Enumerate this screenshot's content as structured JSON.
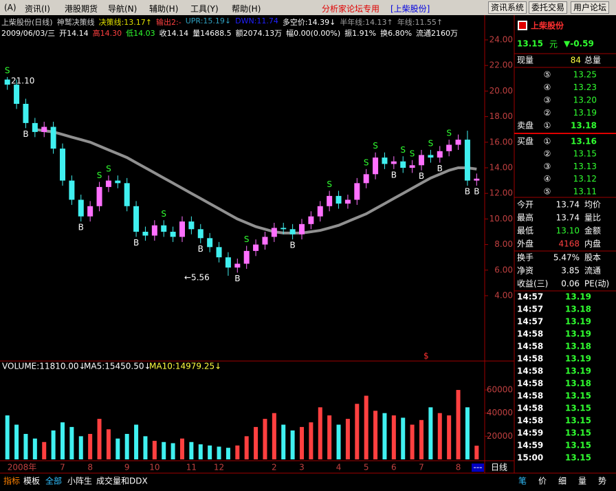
{
  "menu": {
    "items": [
      "(A)",
      "资讯(I)",
      "港股期货",
      "导航(N)",
      "辅助(H)",
      "工具(Y)",
      "帮助(H)"
    ],
    "banner": "分析家论坛专用",
    "stock": "[上柴股份]",
    "buttons": [
      "资讯系统",
      "委托交易",
      "用户论坛"
    ]
  },
  "header": {
    "line1": [
      {
        "text": "上柴股份(日线)",
        "color": "#d0d0d0"
      },
      {
        "text": "神鹫决策线",
        "color": "#d0d0d0"
      },
      {
        "text": "决策线:13.17↑",
        "color": "#e0e000"
      },
      {
        "text": "输出2:-",
        "color": "#ff4040"
      },
      {
        "text": "UPR:15.19↓",
        "color": "#30a0c0"
      },
      {
        "text": "DWN:11.74",
        "color": "#2020ff"
      },
      {
        "text": "多空价:14.39↓",
        "color": "#ffffff"
      },
      {
        "text": "半年线:14.13↑",
        "color": "#a0a0a0"
      },
      {
        "text": "年线:11.55↑",
        "color": "#a0a0a0"
      }
    ],
    "line2": [
      {
        "text": "2009/06/03/三",
        "color": "#ffffff"
      },
      {
        "text": "开14.14",
        "color": "#ffffff"
      },
      {
        "text": "高14.30",
        "color": "#ff4040"
      },
      {
        "text": "低14.03",
        "color": "#30ff30"
      },
      {
        "text": "收14.14",
        "color": "#ffffff"
      },
      {
        "text": "量14688.5",
        "color": "#ffffff"
      },
      {
        "text": "额2074.13万",
        "color": "#ffffff"
      },
      {
        "text": "幅0.00(0.00%)",
        "color": "#ffffff"
      },
      {
        "text": "振1.91%",
        "color": "#ffffff"
      },
      {
        "text": "换6.80%",
        "color": "#ffffff"
      },
      {
        "text": "流通2160万",
        "color": "#ffffff"
      }
    ]
  },
  "chart_data": [
    {
      "type": "candlestick",
      "categories": [
        "2008年",
        null,
        null,
        null,
        null,
        null,
        "7",
        null,
        null,
        "8",
        null,
        null,
        null,
        "9",
        null,
        null,
        "10",
        null,
        null,
        null,
        "11",
        null,
        null,
        "12",
        null,
        null,
        null,
        null,
        null,
        "2",
        null,
        null,
        "3",
        null,
        null,
        null,
        "4",
        null,
        null,
        "5",
        null,
        null,
        "6",
        null,
        null,
        "7",
        null,
        null,
        null,
        "8",
        null,
        null
      ],
      "open": [
        20.9,
        20.5,
        19.0,
        17.5,
        16.8,
        17.2,
        15.5,
        13.0,
        11.5,
        10.2,
        11.0,
        12.5,
        13.0,
        12.8,
        11.0,
        9.0,
        8.7,
        9.5,
        9.0,
        8.6,
        9.8,
        9.2,
        8.5,
        7.8,
        7.0,
        6.2,
        6.5,
        7.5,
        8.0,
        8.6,
        9.3,
        9.2,
        8.8,
        9.6,
        10.2,
        11.0,
        11.8,
        11.2,
        11.5,
        12.8,
        13.5,
        14.8,
        14.3,
        14.5,
        14.0,
        14.2,
        15.0,
        14.8,
        15.3,
        15.8,
        16.2,
        13.0
      ],
      "close": [
        20.5,
        19.0,
        17.5,
        16.8,
        17.2,
        15.5,
        13.0,
        11.5,
        10.2,
        11.0,
        12.5,
        13.0,
        12.8,
        11.0,
        9.0,
        8.7,
        9.5,
        9.0,
        8.6,
        9.8,
        9.2,
        8.5,
        7.8,
        7.0,
        6.2,
        6.5,
        7.5,
        8.0,
        8.6,
        9.3,
        9.2,
        8.8,
        9.6,
        10.2,
        11.0,
        11.8,
        11.2,
        11.5,
        12.8,
        13.5,
        14.8,
        14.3,
        14.5,
        14.0,
        14.2,
        15.0,
        14.8,
        15.3,
        15.8,
        16.2,
        13.0,
        13.15
      ],
      "high": [
        21.1,
        20.9,
        19.4,
        17.9,
        17.6,
        17.6,
        15.9,
        13.4,
        11.9,
        11.4,
        12.9,
        13.4,
        13.4,
        13.2,
        11.4,
        9.4,
        9.9,
        9.9,
        9.4,
        10.2,
        10.2,
        9.6,
        8.9,
        8.2,
        7.4,
        6.9,
        7.9,
        8.4,
        9.0,
        9.7,
        9.7,
        9.6,
        10.0,
        10.6,
        11.4,
        12.2,
        12.2,
        11.9,
        13.2,
        13.9,
        15.2,
        15.2,
        14.9,
        14.9,
        14.6,
        15.4,
        15.4,
        15.7,
        16.2,
        16.6,
        16.9,
        13.55
      ],
      "low": [
        20.1,
        18.6,
        17.1,
        16.4,
        16.4,
        15.1,
        12.6,
        11.1,
        9.8,
        9.8,
        10.6,
        12.1,
        12.4,
        10.6,
        8.6,
        8.3,
        8.3,
        8.6,
        8.2,
        8.2,
        8.8,
        8.1,
        7.4,
        6.6,
        5.56,
        5.8,
        6.1,
        7.1,
        7.6,
        8.2,
        8.8,
        8.4,
        8.4,
        9.2,
        9.8,
        10.6,
        10.8,
        10.8,
        11.1,
        12.4,
        13.1,
        13.9,
        13.9,
        13.6,
        13.6,
        13.8,
        14.4,
        14.4,
        14.9,
        15.4,
        12.6,
        12.6
      ],
      "series": [
        {
          "name": "半年线",
          "color": "#909090",
          "values": [
            null,
            null,
            null,
            17.0,
            16.9,
            16.8,
            16.6,
            16.4,
            16.2,
            16.0,
            15.7,
            15.4,
            15.1,
            14.8,
            14.4,
            14.0,
            13.6,
            13.2,
            12.8,
            12.4,
            12.0,
            11.6,
            11.2,
            10.8,
            10.4,
            10.0,
            9.7,
            9.4,
            9.2,
            9.0,
            8.9,
            8.9,
            8.9,
            9.0,
            9.1,
            9.3,
            9.5,
            9.8,
            10.1,
            10.4,
            10.8,
            11.2,
            11.6,
            12.0,
            12.4,
            12.8,
            13.2,
            13.5,
            13.8,
            14.0,
            14.0,
            13.9
          ]
        }
      ],
      "sell_signals": [
        "S",
        null,
        null,
        null,
        null,
        null,
        null,
        null,
        null,
        null,
        "S",
        "S",
        null,
        null,
        null,
        null,
        null,
        "S",
        null,
        null,
        null,
        null,
        null,
        null,
        null,
        null,
        "S",
        null,
        null,
        null,
        null,
        null,
        null,
        null,
        null,
        "S",
        null,
        null,
        null,
        "S",
        "S",
        null,
        null,
        "S",
        "S",
        null,
        "S",
        null,
        "S",
        null,
        null,
        null
      ],
      "buy_signals": [
        null,
        null,
        "B",
        null,
        null,
        null,
        null,
        null,
        "B",
        null,
        null,
        null,
        null,
        null,
        "B",
        null,
        null,
        null,
        null,
        null,
        null,
        "B",
        null,
        null,
        null,
        "B",
        null,
        null,
        null,
        null,
        null,
        "B",
        null,
        null,
        null,
        null,
        null,
        null,
        null,
        null,
        null,
        null,
        "B",
        null,
        null,
        "B",
        null,
        "B",
        null,
        null,
        "B",
        "B"
      ],
      "annotations": [
        "21.10",
        "←5.56",
        "$"
      ],
      "up_color": "#ff70ff",
      "down_color": "#40f0f0",
      "line_width": 4,
      "ylim": [
        4,
        24
      ],
      "yticks": [
        {
          "value": 4,
          "label": "4.00"
        },
        {
          "value": 6,
          "label": "6.00"
        },
        {
          "value": 8,
          "label": "8.00"
        },
        {
          "value": 10,
          "label": "10.00"
        },
        {
          "value": 12,
          "label": "12.00"
        },
        {
          "value": 14,
          "label": "14.00"
        },
        {
          "value": 16,
          "label": "16.00"
        },
        {
          "value": 18,
          "label": "18.00"
        },
        {
          "value": 20,
          "label": "20.00"
        },
        {
          "value": 22,
          "label": "22.00"
        },
        {
          "value": 24,
          "label": "24.00"
        }
      ]
    },
    {
      "type": "bar",
      "title": "VOLUME:11810.00↓",
      "subtitles": [
        "MA5:15450.50↓",
        "MA10:14979.25↓"
      ],
      "subtitle_colors": [
        "#ffffff",
        "#ffff40"
      ],
      "values": [
        38000,
        30000,
        22000,
        18000,
        15000,
        25000,
        32000,
        28000,
        20000,
        22000,
        35000,
        26000,
        18000,
        22000,
        30000,
        20000,
        16000,
        15000,
        14000,
        18000,
        15000,
        13000,
        12000,
        11000,
        10000,
        12000,
        20000,
        28000,
        35000,
        40000,
        30000,
        25000,
        28000,
        32000,
        45000,
        38000,
        30000,
        35000,
        48000,
        55000,
        42000,
        40000,
        38000,
        36000,
        30000,
        34000,
        45000,
        40000,
        38000,
        60000,
        45000,
        11810
      ],
      "ylim": [
        0,
        85000
      ],
      "yticks": [
        20000,
        40000,
        60000
      ]
    }
  ],
  "quote": {
    "name": "上柴股份",
    "price": "13.15",
    "unit": "元",
    "change": "▼-0.59",
    "volume_label": "现量",
    "volume": "84",
    "total_label": "总量",
    "sell_label": "卖盘",
    "sell": [
      [
        "⑤",
        "13.25"
      ],
      [
        "④",
        "13.23"
      ],
      [
        "③",
        "13.20"
      ],
      [
        "②",
        "13.19"
      ],
      [
        "①",
        "13.18"
      ]
    ],
    "buy_label": "买盘",
    "buy": [
      [
        "①",
        "13.16"
      ],
      [
        "②",
        "13.15"
      ],
      [
        "③",
        "13.13"
      ],
      [
        "④",
        "13.12"
      ],
      [
        "⑤",
        "13.11"
      ]
    ],
    "stats": [
      [
        "今开",
        "13.74",
        "均价"
      ],
      [
        "最高",
        "13.74",
        "量比"
      ],
      [
        "最低",
        "13.10",
        "金额"
      ],
      [
        "外盘",
        "4168",
        "内盘"
      ]
    ],
    "stats_colors": [
      "#ffffff",
      "#ffffff",
      "#30ff30",
      "#ff4040"
    ],
    "stats2": [
      [
        "换手",
        "5.47%",
        "股本"
      ],
      [
        "净资",
        "3.85",
        "流通"
      ],
      [
        "收益(三)",
        "0.06",
        "PE(动)"
      ]
    ]
  },
  "ticks": {
    "rows": [
      [
        "14:57",
        "13.19"
      ],
      [
        "14:57",
        "13.18"
      ],
      [
        "14:57",
        "13.19"
      ],
      [
        "14:58",
        "13.19"
      ],
      [
        "14:58",
        "13.18"
      ],
      [
        "14:58",
        "13.19"
      ],
      [
        "14:58",
        "13.19"
      ],
      [
        "14:58",
        "13.18"
      ],
      [
        "14:58",
        "13.15"
      ],
      [
        "14:58",
        "13.15"
      ],
      [
        "14:58",
        "13.15"
      ],
      [
        "14:59",
        "13.15"
      ],
      [
        "14:59",
        "13.15"
      ],
      [
        "15:00",
        "13.15"
      ]
    ]
  },
  "footer": {
    "tabs": [
      "指标",
      "模板",
      "全部",
      "小阵生",
      "成交量和DDX"
    ],
    "button": "---",
    "period": "日线",
    "side_tabs": [
      "笔",
      "价",
      "细",
      "量",
      "势"
    ]
  }
}
